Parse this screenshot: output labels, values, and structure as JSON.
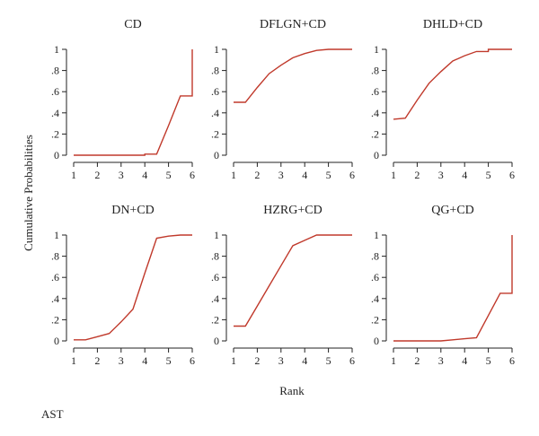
{
  "chart_data": {
    "type": "line",
    "ylabel": "Cumulative Probabilities",
    "xlabel": "Rank",
    "caption": "AST",
    "line_color": "#c0392b",
    "xlim": [
      1,
      6
    ],
    "ylim": [
      0,
      1
    ],
    "x_ticks": [
      "1",
      "2",
      "3",
      "4",
      "5",
      "6"
    ],
    "y_ticks": [
      "0",
      ".2",
      ".4",
      ".6",
      ".8",
      "1"
    ],
    "panels": [
      {
        "title": "CD",
        "x": [
          1,
          1.5,
          2,
          2.5,
          3,
          3.5,
          4,
          4,
          4.5,
          5,
          5.5,
          6,
          6
        ],
        "y": [
          0,
          0,
          0,
          0,
          0,
          0,
          0,
          0.01,
          0.01,
          0.28,
          0.56,
          0.56,
          1.0
        ]
      },
      {
        "title": "DFLGN+CD",
        "x": [
          1,
          1.5,
          2,
          2.5,
          3,
          3.5,
          4,
          4.5,
          5,
          5.5,
          6
        ],
        "y": [
          0.5,
          0.5,
          0.64,
          0.77,
          0.85,
          0.92,
          0.96,
          0.99,
          1.0,
          1.0,
          1.0
        ]
      },
      {
        "title": "DHLD+CD",
        "x": [
          1,
          1.5,
          2,
          2.5,
          3,
          3.5,
          4,
          4.5,
          5,
          5,
          5.5,
          6
        ],
        "y": [
          0.34,
          0.35,
          0.52,
          0.68,
          0.79,
          0.89,
          0.94,
          0.98,
          0.98,
          1.0,
          1.0,
          1.0
        ]
      },
      {
        "title": "DN+CD",
        "x": [
          1,
          1.5,
          2,
          2.5,
          3,
          3.5,
          4,
          4.5,
          5,
          5.5,
          6
        ],
        "y": [
          0.01,
          0.01,
          0.04,
          0.07,
          0.18,
          0.3,
          0.64,
          0.97,
          0.99,
          1.0,
          1.0
        ]
      },
      {
        "title": "HZRG+CD",
        "x": [
          1,
          1.5,
          2,
          2.5,
          3,
          3.5,
          4,
          4.5,
          5,
          5.5,
          6
        ],
        "y": [
          0.14,
          0.14,
          0.33,
          0.52,
          0.71,
          0.9,
          0.95,
          1.0,
          1.0,
          1.0,
          1.0
        ]
      },
      {
        "title": "QG+CD",
        "x": [
          1,
          1.5,
          2,
          2.5,
          3,
          3.5,
          4,
          4.5,
          5,
          5.5,
          6,
          6
        ],
        "y": [
          0,
          0,
          0,
          0,
          0,
          0.01,
          0.02,
          0.03,
          0.24,
          0.45,
          0.45,
          1.0
        ]
      }
    ]
  }
}
